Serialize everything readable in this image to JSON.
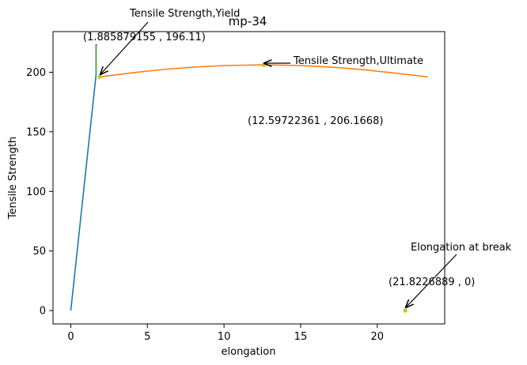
{
  "chart_data": {
    "type": "line",
    "title": "mp-34",
    "xlabel": "elongation",
    "ylabel": "Tensile Strength",
    "xlim": [
      -1.16,
      24.4
    ],
    "ylim": [
      -11.2,
      234.1
    ],
    "grid": false,
    "xticks": [
      0,
      5,
      10,
      15,
      20
    ],
    "yticks": [
      0,
      50,
      100,
      150,
      200
    ],
    "series": [
      {
        "color": "#1f77b4",
        "x": [
          0,
          1.65
        ],
        "y": [
          0,
          198
        ]
      },
      {
        "color": "#2ca02c",
        "x": [
          1.65,
          1.65,
          1.72
        ],
        "y": [
          198,
          223,
          223
        ]
      },
      {
        "color": "#ff7f0e",
        "x": [
          1.885879155,
          4,
          6,
          8,
          10,
          12.59722361,
          15,
          17,
          19,
          21,
          23.3
        ],
        "y": [
          196.11,
          199.5,
          202.3,
          204.3,
          205.6,
          206.1668,
          205.6,
          204.3,
          202.2,
          199.5,
          196.1
        ]
      }
    ],
    "markers": [
      {
        "x": 1.885879155,
        "y": 196.11,
        "color": "#c7c700"
      },
      {
        "x": 12.59722361,
        "y": 206.1668,
        "color": "#c7c700"
      },
      {
        "x": 21.8226889,
        "y": 0,
        "color": "#c7c700"
      }
    ],
    "annotations": [
      {
        "text": "Tensile Strength,Yield",
        "label": "(1.885879155 , 196.11)"
      },
      {
        "text": "Tensile Strength,Ultimate",
        "label": "(12.59722361 , 206.1668)"
      },
      {
        "text": "Elongation at break",
        "label": "(21.8226889 , 0)"
      }
    ]
  }
}
